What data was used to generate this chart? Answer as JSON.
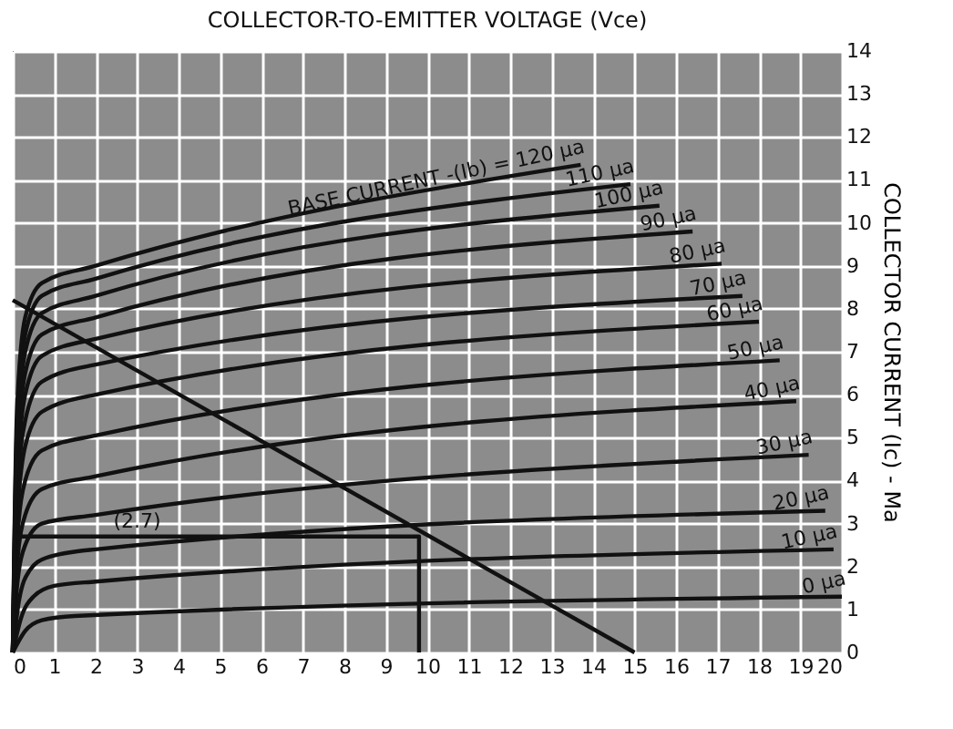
{
  "chart_data": {
    "type": "line",
    "title": "COLLECTOR-TO-EMITTER VOLTAGE (Vce)",
    "ylabel": "COLLECTOR CURRENT (Ic) - Ma",
    "xlim": [
      0,
      20
    ],
    "ylim": [
      0,
      14
    ],
    "xticks": [
      0,
      1,
      2,
      3,
      4,
      5,
      6,
      7,
      8,
      9,
      10,
      11,
      12,
      13,
      14,
      15,
      16,
      17,
      18,
      19,
      20
    ],
    "yticks": [
      0,
      1,
      2,
      3,
      4,
      5,
      6,
      7,
      8,
      9,
      10,
      11,
      12,
      13,
      14
    ],
    "grid": true,
    "legend": false,
    "marker": "none",
    "line_style": "solid",
    "series": [
      {
        "name": "0 μa",
        "color": "#111111",
        "x": [
          0,
          0.3,
          0.7,
          1.5,
          20
        ],
        "values": [
          0,
          0.5,
          0.75,
          0.85,
          1.3
        ]
      },
      {
        "name": "10 μa",
        "color": "#111111",
        "x": [
          0,
          0.2,
          0.5,
          1,
          2,
          19.8
        ],
        "values": [
          0,
          0.8,
          1.3,
          1.55,
          1.65,
          2.4
        ]
      },
      {
        "name": "20 μa",
        "color": "#111111",
        "x": [
          0,
          0.15,
          0.4,
          0.8,
          2,
          19.6
        ],
        "values": [
          0,
          1.2,
          1.9,
          2.2,
          2.4,
          3.3
        ]
      },
      {
        "name": "30 μa",
        "color": "#111111",
        "x": [
          0,
          0.1,
          0.3,
          0.7,
          2,
          19.2
        ],
        "values": [
          0,
          1.5,
          2.5,
          3.0,
          3.2,
          4.6
        ]
      },
      {
        "name": "40 μa",
        "color": "#111111",
        "x": [
          0,
          0.1,
          0.3,
          0.7,
          2,
          18.9
        ],
        "values": [
          0,
          2,
          3.2,
          3.8,
          4.1,
          5.85
        ]
      },
      {
        "name": "50 μa",
        "color": "#111111",
        "x": [
          0,
          0.1,
          0.3,
          0.7,
          2,
          18.5
        ],
        "values": [
          0,
          2.5,
          4,
          4.7,
          5.05,
          6.8
        ]
      },
      {
        "name": "60 μa",
        "color": "#111111",
        "x": [
          0,
          0.1,
          0.3,
          0.7,
          2,
          18.0
        ],
        "values": [
          0,
          3,
          4.8,
          5.6,
          6.0,
          7.7
        ]
      },
      {
        "name": "70 μa",
        "color": "#111111",
        "x": [
          0,
          0.1,
          0.3,
          0.7,
          2,
          17.6
        ],
        "values": [
          0,
          3.5,
          5.4,
          6.3,
          6.7,
          8.3
        ]
      },
      {
        "name": "80 μa",
        "color": "#111111",
        "x": [
          0,
          0.1,
          0.3,
          0.7,
          2,
          17.1
        ],
        "values": [
          0,
          4,
          6,
          6.9,
          7.3,
          9.05
        ]
      },
      {
        "name": "90 μa",
        "color": "#111111",
        "x": [
          0,
          0.1,
          0.3,
          0.7,
          2,
          16.4
        ],
        "values": [
          0,
          4.4,
          6.5,
          7.4,
          7.8,
          9.8
        ]
      },
      {
        "name": "100 μa",
        "color": "#111111",
        "x": [
          0,
          0.1,
          0.3,
          0.7,
          2,
          15.6
        ],
        "values": [
          0,
          4.8,
          7,
          7.9,
          8.3,
          10.4
        ]
      },
      {
        "name": "110 μa",
        "color": "#111111",
        "x": [
          0,
          0.1,
          0.3,
          0.7,
          2,
          14.9
        ],
        "values": [
          0,
          5.2,
          7.4,
          8.3,
          8.7,
          10.9
        ]
      },
      {
        "name": "BASE CURRENT -(Ib) = 120 μa",
        "color": "#111111",
        "x": [
          0,
          0.1,
          0.3,
          0.7,
          2,
          13.7
        ],
        "values": [
          0,
          5.6,
          7.8,
          8.6,
          9.0,
          11.35
        ]
      },
      {
        "color": "#111111",
        "x": [
          0,
          15
        ],
        "values": [
          8.2,
          0
        ]
      },
      {
        "color": "#111111",
        "x": [
          0,
          9.8,
          9.8
        ],
        "values": [
          2.7,
          2.7,
          0
        ]
      }
    ],
    "annotations": [
      {
        "text": "(2.7)",
        "x": 3,
        "y": 2.7
      }
    ]
  }
}
